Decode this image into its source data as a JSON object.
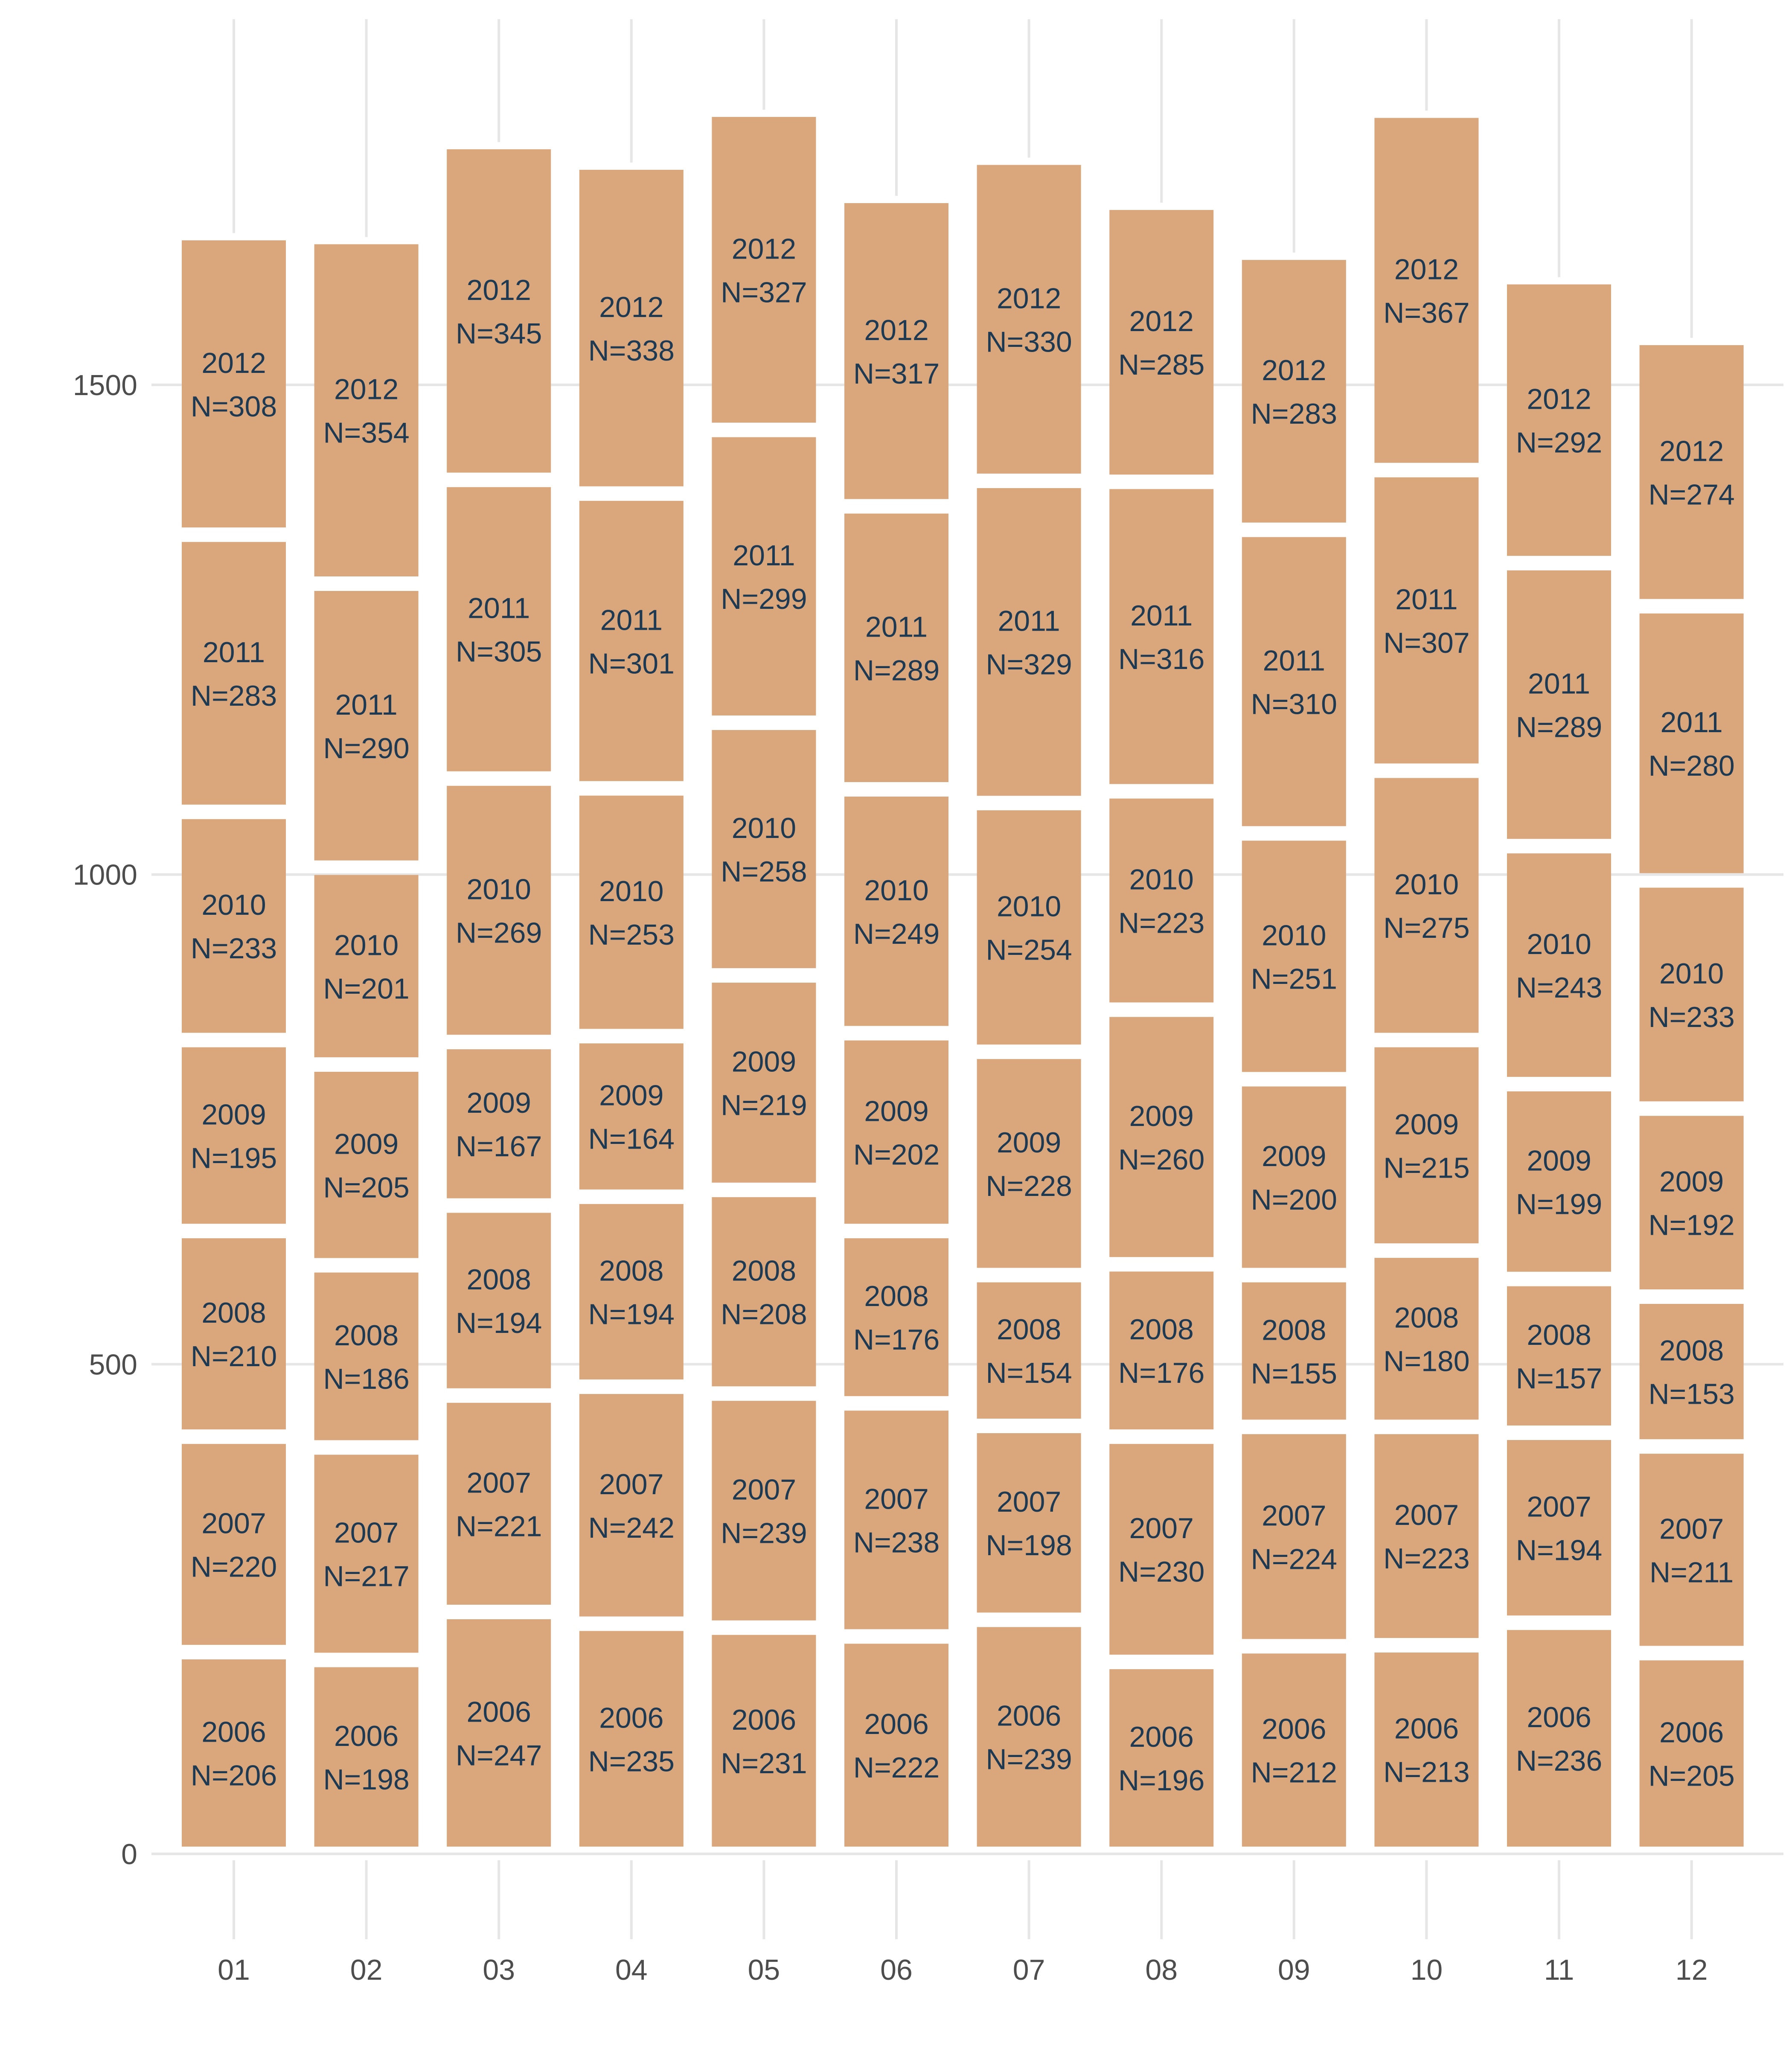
{
  "chart_data": {
    "type": "bar",
    "stacked": true,
    "categories": [
      "01",
      "02",
      "03",
      "04",
      "05",
      "06",
      "07",
      "08",
      "09",
      "10",
      "11",
      "12"
    ],
    "series": [
      {
        "name": "2006",
        "values": [
          206,
          198,
          247,
          235,
          231,
          222,
          239,
          196,
          212,
          213,
          236,
          205
        ]
      },
      {
        "name": "2007",
        "values": [
          220,
          217,
          221,
          242,
          239,
          238,
          198,
          230,
          224,
          223,
          194,
          211
        ]
      },
      {
        "name": "2008",
        "values": [
          210,
          186,
          194,
          194,
          208,
          176,
          154,
          176,
          155,
          180,
          157,
          153
        ]
      },
      {
        "name": "2009",
        "values": [
          195,
          205,
          167,
          164,
          219,
          202,
          228,
          260,
          200,
          215,
          199,
          192
        ]
      },
      {
        "name": "2010",
        "values": [
          233,
          201,
          269,
          253,
          258,
          249,
          254,
          223,
          251,
          275,
          243,
          233
        ]
      },
      {
        "name": "2011",
        "values": [
          283,
          290,
          305,
          301,
          299,
          289,
          329,
          316,
          310,
          307,
          289,
          280
        ]
      },
      {
        "name": "2012",
        "values": [
          308,
          354,
          345,
          338,
          327,
          317,
          330,
          285,
          283,
          367,
          292,
          274
        ]
      }
    ],
    "segment_label_prefix": "N=",
    "yticks": [
      0,
      500,
      1000,
      1500
    ],
    "ylim": [
      0,
      1866
    ],
    "title": "",
    "xlabel": "",
    "ylabel": "",
    "grid": true,
    "legend": "none",
    "bar_color": "#daa67c",
    "label_color": "#1e3a52",
    "tick_label_color": "#4d4d4d",
    "grid_color": "#e6e6e6"
  }
}
